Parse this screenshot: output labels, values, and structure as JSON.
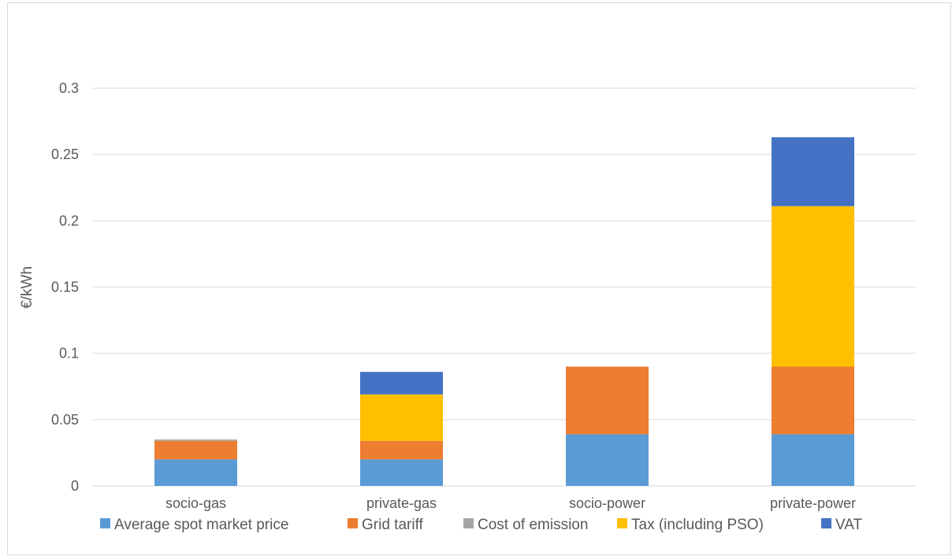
{
  "chart_data": {
    "type": "bar",
    "stacked": true,
    "ylabel": "€/kWh",
    "ylim": [
      0,
      0.3
    ],
    "yticks": [
      "0",
      "0.05",
      "0.1",
      "0.15",
      "0.2",
      "0.25",
      "0.3"
    ],
    "ytick_values": [
      0,
      0.05,
      0.1,
      0.15,
      0.2,
      0.25,
      0.3
    ],
    "grid": true,
    "legend_position": "bottom",
    "categories": [
      "socio-gas",
      "private-gas",
      "socio-power",
      "private-power"
    ],
    "series": [
      {
        "name": "Average spot market price",
        "color": "#5b9bd5",
        "values": [
          0.02,
          0.02,
          0.039,
          0.039
        ]
      },
      {
        "name": "Grid tariff",
        "color": "#ed7d31",
        "values": [
          0.014,
          0.014,
          0.051,
          0.051
        ]
      },
      {
        "name": "Cost of emission",
        "color": "#a5a5a5",
        "values": [
          0.001,
          0.0,
          0.0,
          0.0
        ]
      },
      {
        "name": "Tax (including PSO)",
        "color": "#ffc000",
        "values": [
          0.0,
          0.035,
          0.0,
          0.121
        ]
      },
      {
        "name": "VAT",
        "color": "#4472c4",
        "values": [
          0.0,
          0.017,
          0.0,
          0.052
        ]
      }
    ]
  }
}
